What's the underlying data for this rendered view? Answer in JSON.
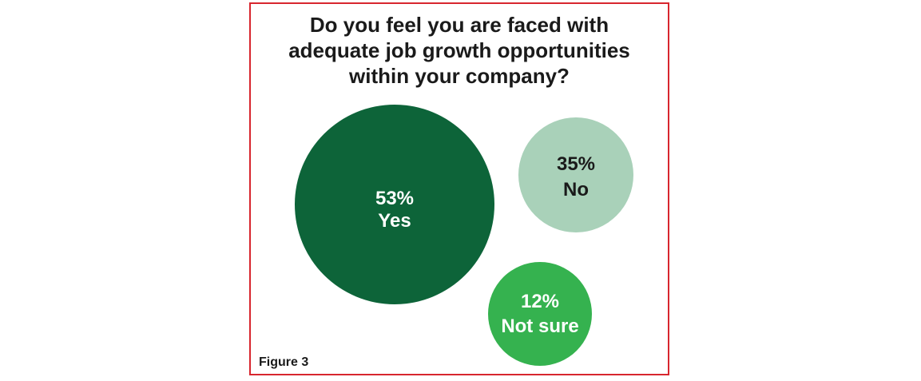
{
  "title_lines": [
    "Do you feel you are faced with",
    "adequate job growth opportunities",
    "within your company?"
  ],
  "figure_label": "Figure 3",
  "colors": {
    "border": "#d8262e",
    "yes": "#0d6439",
    "no": "#a9d1b9",
    "not_sure": "#35b24f"
  },
  "chart_data": {
    "type": "bubble",
    "title": "Do you feel you are faced with adequate job growth opportunities within your company?",
    "categories": [
      "Yes",
      "No",
      "Not sure"
    ],
    "values": [
      53,
      35,
      12
    ],
    "value_labels": [
      "53%",
      "35%",
      "12%"
    ],
    "unit": "%"
  }
}
